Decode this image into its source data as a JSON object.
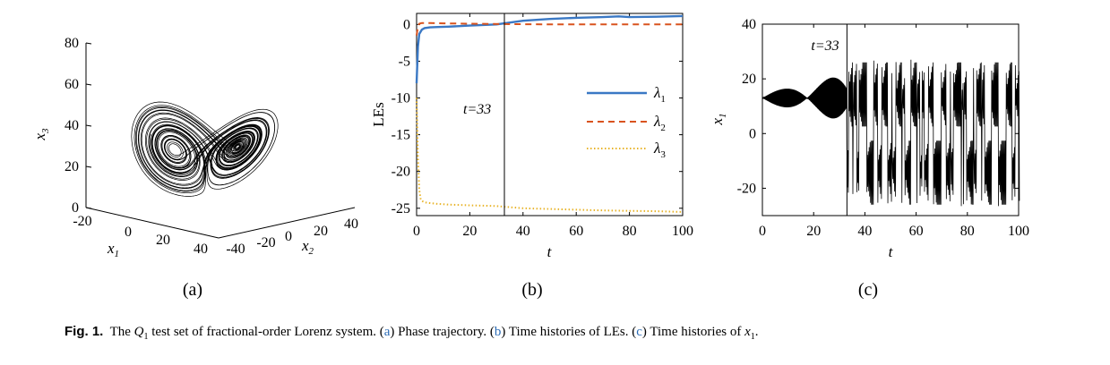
{
  "caption": {
    "fig_label": "Fig. 1.",
    "text_1": "The ",
    "q_symbol": "Q",
    "q_sub": "1",
    "text_2": " test set of fractional-order Lorenz system. (",
    "link_a": "a",
    "text_3": ") Phase trajectory. (",
    "link_b": "b",
    "text_4": ") Time histories of LEs. (",
    "link_c": "c",
    "text_5": ") Time histories of ",
    "x_symbol": "x",
    "x_sub": "1",
    "text_6": "."
  },
  "panels": {
    "a": {
      "label": "(a)"
    },
    "b": {
      "label": "(b)"
    },
    "c": {
      "label": "(c)"
    }
  },
  "colors": {
    "lambda1": "#3a78c4",
    "lambda2": "#d9531e",
    "lambda3": "#e8b42a",
    "trace": "#000000"
  },
  "chart_data": [
    {
      "id": "a",
      "type": "scatter",
      "subtype": "3d-phase-trajectory",
      "title": "",
      "xlabel": "x1",
      "ylabel": "x2",
      "zlabel": "x3",
      "x_ticks": [
        "-20",
        "0",
        "20",
        "40"
      ],
      "y_ticks": [
        "-40",
        "-20",
        "0",
        "20",
        "40"
      ],
      "z_ticks": [
        "0",
        "20",
        "40",
        "60",
        "80"
      ],
      "zlim": [
        0,
        80
      ],
      "description_shape": "Lorenz butterfly attractor with two lobes"
    },
    {
      "id": "b",
      "type": "line",
      "title": "",
      "xlabel": "t",
      "ylabel": "LEs",
      "xlim": [
        0,
        100
      ],
      "ylim": [
        -26,
        1.5
      ],
      "x_ticks": [
        "0",
        "20",
        "40",
        "60",
        "80",
        "100"
      ],
      "y_ticks": [
        "0",
        "-5",
        "-10",
        "-15",
        "-20",
        "-25"
      ],
      "vline": {
        "x": 33,
        "label": "t=33"
      },
      "legend_position": "right-middle",
      "series": [
        {
          "name": "λ1",
          "style": "solid",
          "x": [
            0,
            0.5,
            1,
            2,
            3,
            5,
            8,
            12,
            20,
            30,
            33,
            40,
            50,
            60,
            70,
            76,
            80,
            90,
            100
          ],
          "y": [
            -8,
            -3,
            -1.3,
            -0.7,
            -0.5,
            -0.4,
            -0.35,
            -0.3,
            -0.15,
            0.0,
            0.15,
            0.5,
            0.75,
            0.9,
            1.0,
            1.1,
            1.0,
            1.05,
            1.15
          ]
        },
        {
          "name": "λ2",
          "style": "dashed",
          "x": [
            0,
            0.5,
            1,
            2,
            5,
            10,
            20,
            33,
            50,
            70,
            100
          ],
          "y": [
            -1.5,
            -0.3,
            0.1,
            0.2,
            0.2,
            0.15,
            0.1,
            0.05,
            0.0,
            0.0,
            0.0
          ]
        },
        {
          "name": "λ3",
          "style": "dotted",
          "x": [
            0,
            0.5,
            1,
            1.5,
            2,
            3,
            5,
            8,
            12,
            20,
            30,
            33,
            40,
            50,
            60,
            70,
            80,
            90,
            100
          ],
          "y": [
            -10,
            -18,
            -22.5,
            -23.7,
            -24.0,
            -24.2,
            -24.3,
            -24.4,
            -24.5,
            -24.6,
            -24.7,
            -24.8,
            -25.0,
            -25.1,
            -25.2,
            -25.3,
            -25.35,
            -25.4,
            -25.5
          ]
        }
      ]
    },
    {
      "id": "c",
      "type": "line",
      "title": "",
      "xlabel": "t",
      "ylabel": "x1",
      "xlim": [
        0,
        100
      ],
      "ylim": [
        -30,
        40
      ],
      "x_ticks": [
        "0",
        "20",
        "40",
        "60",
        "80",
        "100"
      ],
      "y_ticks": [
        "40",
        "20",
        "0",
        "-20"
      ],
      "vline": {
        "x": 33,
        "label": "t=33"
      },
      "phases": [
        {
          "t_start": 0,
          "t_end": 33,
          "behavior": "oscillation around center 13 with amplitude growing from 3 to 10"
        },
        {
          "t_start": 33,
          "t_end": 100,
          "behavior": "chaotic switching between lobes near +/-13, peaks about +/-27"
        }
      ]
    }
  ]
}
